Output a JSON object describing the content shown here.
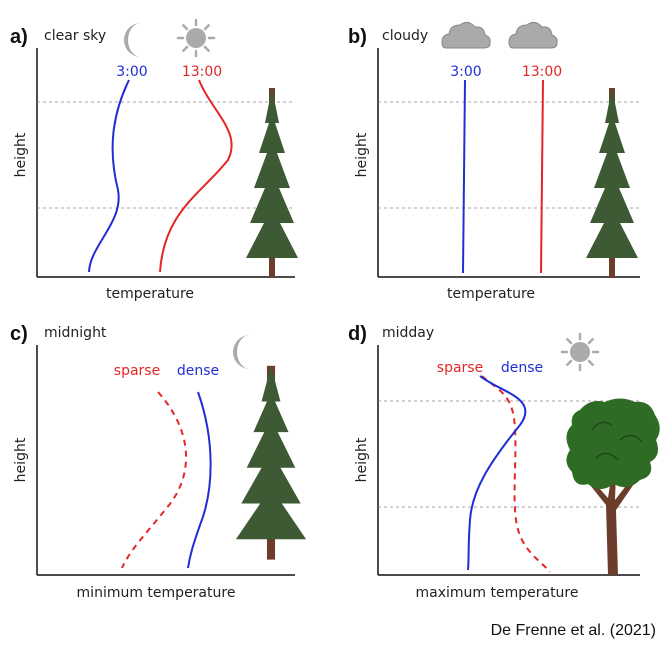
{
  "credit": "De Frenne et al. (2021)",
  "colors": {
    "blue": "#1f2fd4",
    "red": "#e32626",
    "axis": "#111111",
    "icon": "#aaaaaa",
    "tree": "#3d5a35",
    "trunk": "#6b3d2a"
  },
  "panels": [
    {
      "letter": "a)",
      "title": "clear sky",
      "xlabel": "temperature",
      "ylabel": "height",
      "lines": [
        {
          "label": "3:00",
          "color": "blue",
          "style": "solid"
        },
        {
          "label": "13:00",
          "color": "red",
          "style": "solid"
        }
      ],
      "icons": [
        "moon-icon",
        "sun-icon"
      ]
    },
    {
      "letter": "b)",
      "title": "cloudy",
      "xlabel": "temperature",
      "ylabel": "height",
      "lines": [
        {
          "label": "3:00",
          "color": "blue",
          "style": "solid"
        },
        {
          "label": "13:00",
          "color": "red",
          "style": "solid"
        }
      ],
      "icons": [
        "cloud-moon-icon",
        "cloud-sun-icon"
      ]
    },
    {
      "letter": "c)",
      "title": "midnight",
      "xlabel": "minimum temperature",
      "ylabel": "height",
      "lines": [
        {
          "label": "sparse",
          "color": "red",
          "style": "dashed"
        },
        {
          "label": "dense",
          "color": "blue",
          "style": "solid"
        }
      ],
      "icons": [
        "moon-icon"
      ]
    },
    {
      "letter": "d)",
      "title": "midday",
      "xlabel": "maximum temperature",
      "ylabel": "height",
      "lines": [
        {
          "label": "sparse",
          "color": "red",
          "style": "dashed"
        },
        {
          "label": "dense",
          "color": "blue",
          "style": "solid"
        }
      ],
      "icons": [
        "sun-icon"
      ]
    }
  ]
}
